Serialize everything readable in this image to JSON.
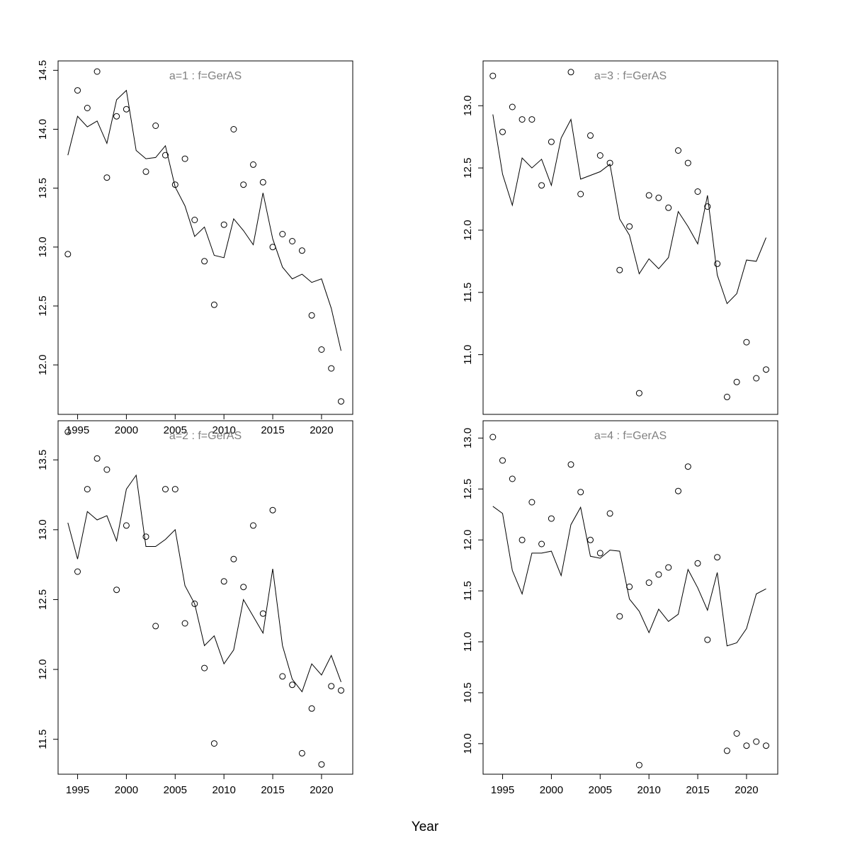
{
  "chart_data": {
    "type": "scatter",
    "xlabel": "Year",
    "x_ticks": [
      1995,
      2000,
      2005,
      2010,
      2015,
      2020
    ],
    "years": [
      1994,
      1995,
      1996,
      1997,
      1998,
      1999,
      2000,
      2001,
      2002,
      2003,
      2004,
      2005,
      2006,
      2007,
      2008,
      2009,
      2010,
      2011,
      2012,
      2013,
      2014,
      2015,
      2016,
      2017,
      2018,
      2019,
      2020,
      2021,
      2022
    ],
    "xlim": [
      1993,
      2023.2
    ],
    "panels": [
      {
        "title": "a=1  :  f=GerAS",
        "ylim": [
          11.58,
          14.58
        ],
        "y_ticks": [
          12.0,
          12.5,
          13.0,
          13.5,
          14.0,
          14.5
        ],
        "y_tick_labels": [
          "12.0",
          "12.5",
          "13.0",
          "13.5",
          "14.0",
          "14.5"
        ],
        "line": [
          13.78,
          14.11,
          14.02,
          14.07,
          13.88,
          14.25,
          14.33,
          13.82,
          13.75,
          13.76,
          13.86,
          13.51,
          13.35,
          13.09,
          13.17,
          12.93,
          12.91,
          13.24,
          13.14,
          13.02,
          13.46,
          13.07,
          12.83,
          12.73,
          12.77,
          12.7,
          12.73,
          12.48,
          12.12
        ],
        "points": [
          12.94,
          14.33,
          14.18,
          14.49,
          13.59,
          14.11,
          14.17,
          null,
          13.64,
          14.03,
          13.78,
          13.53,
          13.75,
          13.23,
          12.88,
          12.51,
          13.19,
          14.0,
          13.53,
          13.7,
          13.55,
          13.0,
          13.11,
          13.05,
          12.97,
          12.42,
          12.13,
          11.97,
          11.69
        ]
      },
      {
        "title": "a=2  :  f=GerAS",
        "ylim": [
          11.25,
          13.78
        ],
        "y_ticks": [
          11.5,
          12.0,
          12.5,
          13.0,
          13.5
        ],
        "y_tick_labels": [
          "11.5",
          "12.0",
          "12.5",
          "13.0",
          "13.5"
        ],
        "line": [
          13.05,
          12.79,
          13.13,
          13.07,
          13.1,
          12.92,
          13.29,
          13.39,
          12.88,
          12.88,
          12.93,
          13.0,
          12.6,
          12.47,
          12.17,
          12.24,
          12.04,
          12.14,
          12.5,
          12.38,
          12.26,
          12.72,
          12.17,
          11.93,
          11.84,
          12.04,
          11.96,
          12.1,
          11.91
        ],
        "points": [
          13.7,
          12.7,
          13.29,
          13.51,
          13.43,
          12.57,
          13.03,
          null,
          12.95,
          12.31,
          13.29,
          13.29,
          12.33,
          12.47,
          12.01,
          11.47,
          12.63,
          12.79,
          12.59,
          13.03,
          12.4,
          13.14,
          11.95,
          11.89,
          11.4,
          11.72,
          11.32,
          11.88,
          11.85
        ]
      },
      {
        "title": "a=3  :  f=GerAS",
        "ylim": [
          10.52,
          13.36
        ],
        "y_ticks": [
          11.0,
          11.5,
          12.0,
          12.5,
          13.0
        ],
        "y_tick_labels": [
          "11.0",
          "11.5",
          "12.0",
          "12.5",
          "13.0"
        ],
        "line": [
          12.93,
          12.45,
          12.2,
          12.58,
          12.5,
          12.57,
          12.36,
          12.74,
          12.89,
          12.41,
          12.44,
          12.47,
          12.53,
          12.09,
          11.96,
          11.65,
          11.77,
          11.69,
          11.78,
          12.15,
          12.03,
          11.89,
          12.28,
          11.64,
          11.41,
          11.49,
          11.76,
          11.75,
          11.94
        ],
        "points": [
          13.24,
          12.79,
          12.99,
          12.89,
          12.89,
          12.36,
          12.71,
          null,
          13.27,
          12.29,
          12.76,
          12.6,
          12.54,
          11.68,
          12.03,
          10.69,
          12.28,
          12.26,
          12.18,
          12.64,
          12.54,
          12.31,
          12.19,
          11.73,
          10.66,
          10.78,
          11.1,
          10.81,
          10.88
        ]
      },
      {
        "title": "a=4  :  f=GerAS",
        "ylim": [
          9.7,
          13.17
        ],
        "y_ticks": [
          10.0,
          10.5,
          11.0,
          11.5,
          12.0,
          12.5,
          13.0
        ],
        "y_tick_labels": [
          "10.0",
          "10.5",
          "11.0",
          "11.5",
          "12.0",
          "12.5",
          "13.0"
        ],
        "line": [
          12.33,
          12.26,
          11.7,
          11.47,
          11.87,
          11.87,
          11.89,
          11.65,
          12.15,
          12.32,
          11.84,
          11.82,
          11.9,
          11.89,
          11.42,
          11.3,
          11.09,
          11.32,
          11.2,
          11.27,
          11.71,
          11.53,
          11.31,
          11.68,
          10.96,
          10.99,
          11.13,
          11.47,
          11.52
        ],
        "points": [
          13.01,
          12.78,
          12.6,
          12.0,
          12.37,
          11.96,
          12.21,
          null,
          12.74,
          12.47,
          12.0,
          11.87,
          12.26,
          11.25,
          11.54,
          9.79,
          11.58,
          11.66,
          11.73,
          12.48,
          12.72,
          11.77,
          11.02,
          11.83,
          9.93,
          10.1,
          9.98,
          10.02,
          9.98
        ]
      }
    ]
  }
}
